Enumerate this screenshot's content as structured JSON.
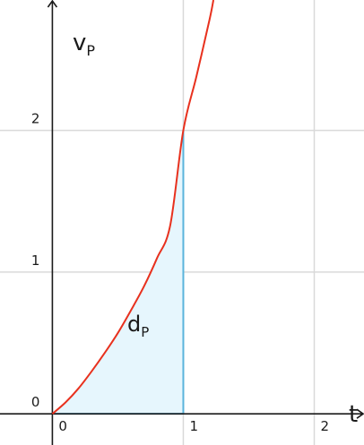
{
  "chart_data": {
    "type": "area",
    "title": "",
    "xlabel": "t",
    "ylabel": {
      "main": "v",
      "sub": "P"
    },
    "xlim": [
      -0.4,
      2.38
    ],
    "ylim": [
      -0.22,
      2.92
    ],
    "x_ticks": [
      0,
      1,
      2
    ],
    "y_ticks": [
      0,
      1,
      2
    ],
    "x_tick_labels": [
      "0",
      "1",
      "2"
    ],
    "y_tick_labels": [
      "0",
      "1",
      "2"
    ],
    "grid": true,
    "curve": {
      "color": "#e8311e",
      "x": [
        0,
        0.1,
        0.2,
        0.3,
        0.4,
        0.5,
        0.6,
        0.7,
        0.8,
        0.9,
        1.0,
        1.1,
        1.2,
        1.23
      ],
      "y": [
        0,
        0.08,
        0.18,
        0.3,
        0.43,
        0.57,
        0.73,
        0.9,
        1.1,
        1.33,
        2.0,
        2.38,
        2.78,
        2.92
      ]
    },
    "shaded_region": {
      "label": {
        "main": "d",
        "sub": "P"
      },
      "x_from": 0,
      "x_to": 1,
      "fill": "#e6f6fd",
      "edge_color": "#5ab4dc"
    },
    "colors": {
      "axis": "#1a1a1a",
      "grid": "#d9d9d9"
    }
  }
}
